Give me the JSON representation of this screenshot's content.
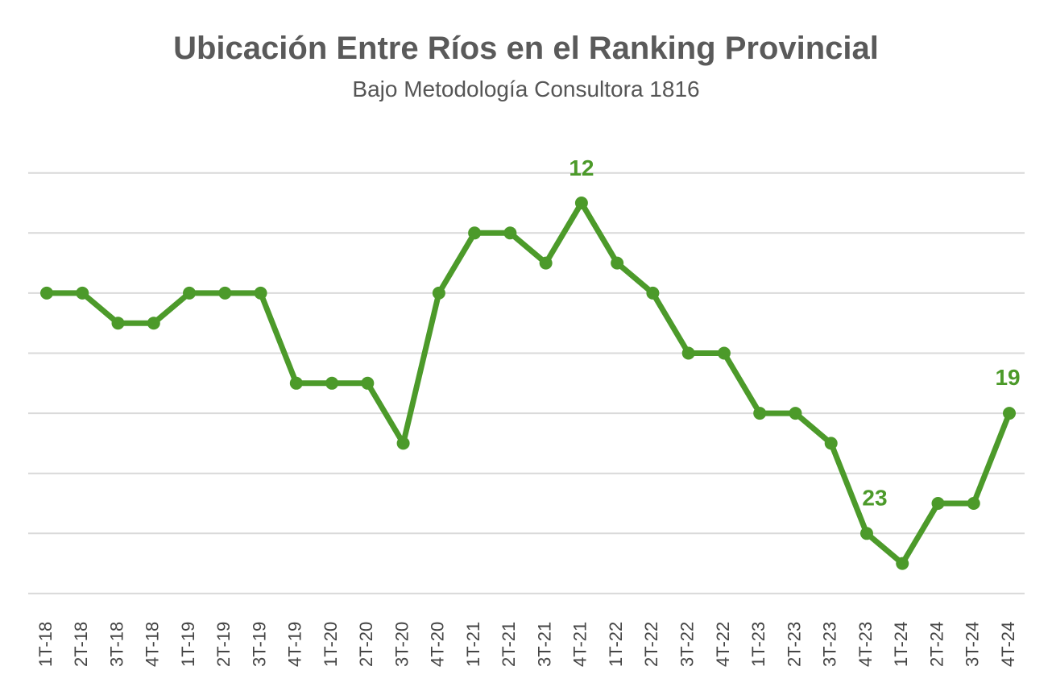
{
  "chart_data": {
    "type": "line",
    "title": "Ubicación Entre Ríos en el Ranking Provincial",
    "subtitle": "Bajo Metodología  Consultora 1816",
    "categories": [
      "1T-18",
      "2T-18",
      "3T-18",
      "4T-18",
      "1T-19",
      "2T-19",
      "3T-19",
      "4T-19",
      "1T-20",
      "2T-20",
      "3T-20",
      "4T-20",
      "1T-21",
      "2T-21",
      "3T-21",
      "4T-21",
      "1T-22",
      "2T-22",
      "3T-22",
      "4T-22",
      "1T-23",
      "2T-23",
      "3T-23",
      "4T-23",
      "1T-24",
      "2T-24",
      "3T-24",
      "4T-24"
    ],
    "series": [
      {
        "values": [
          15,
          15,
          16,
          16,
          15,
          15,
          15,
          18,
          18,
          18,
          20,
          15,
          13,
          13,
          14,
          12,
          14,
          15,
          17,
          17,
          19,
          19,
          20,
          23,
          24,
          22,
          22,
          19
        ]
      }
    ],
    "data_labels": [
      {
        "category": "4T-21",
        "value": "12"
      },
      {
        "category": "4T-23",
        "value": "23"
      },
      {
        "category": "4T-24",
        "value": "19"
      }
    ],
    "y_axis": {
      "inverted": true,
      "range": [
        11,
        24
      ],
      "gridlines": [
        11,
        13,
        15,
        17,
        19,
        21,
        23,
        25
      ],
      "tick_labels_visible": false
    },
    "grid": true,
    "legend": "none",
    "colors": {
      "line": "#4c9a2a",
      "gridline": "#d9d9d9",
      "title": "#5a5a5a",
      "label": "#4c9a2a",
      "axis_text": "#444444"
    }
  }
}
